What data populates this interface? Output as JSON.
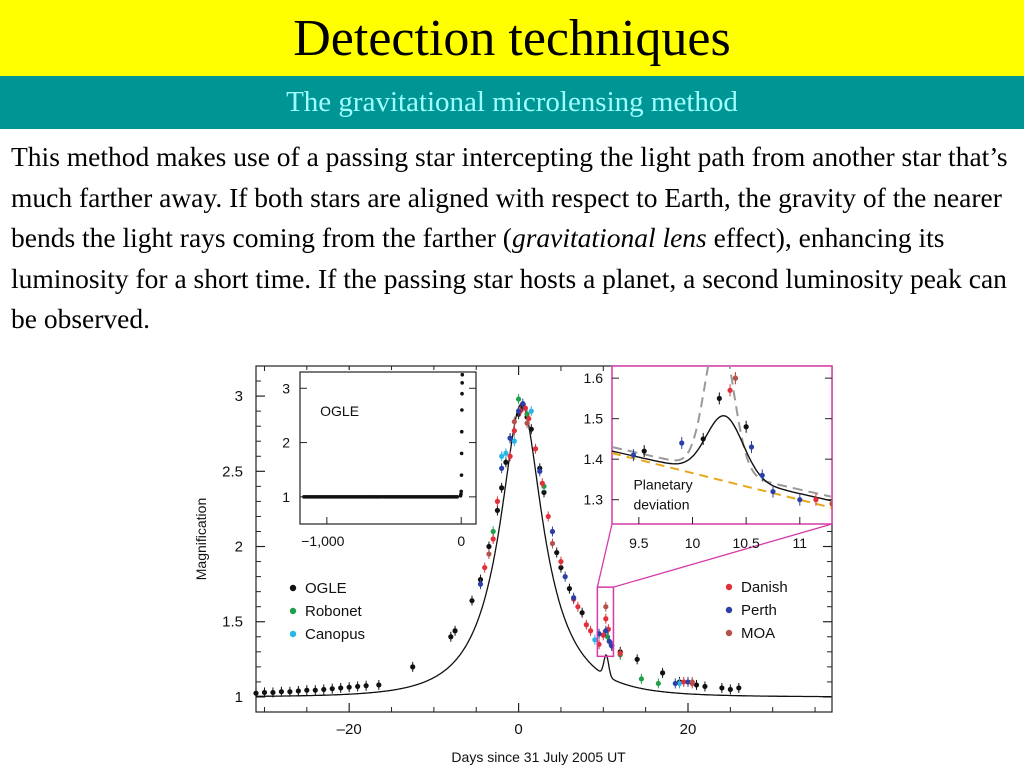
{
  "slide": {
    "title": "Detection techniques",
    "subtitle": "The gravitational microlensing method",
    "body_before_em": "This method makes use of a passing star intercepting the light path from another star that’s much farther away. If both stars are aligned with respect to Earth, the gravity of the nearer bends the light rays coming from the farther (",
    "body_em": "gravitational lens",
    "body_after_em": " effect), enhancing its luminosity for a short time. If the passing star hosts a planet, a second luminosity peak can be observed."
  },
  "colors": {
    "title_bg": "#ffff00",
    "subtitle_bg": "#009595",
    "subtitle_text": "#9fffff",
    "inset_border": "#d63ba8",
    "OGLE": "#111111",
    "Robonet": "#1fa04c",
    "Canopus": "#29b6e6",
    "Danish": "#e0303a",
    "Perth": "#2b3fa6",
    "MOA": "#b2524a"
  },
  "chart_data": [
    {
      "id": "main",
      "type": "scatter",
      "xlabel": "Days since 31 July 2005 UT",
      "ylabel": "Magnification",
      "xlim": [
        -31,
        37
      ],
      "ylim": [
        0.9,
        3.2
      ],
      "x_ticks": [
        -20,
        0,
        20
      ],
      "x_tick_labels": [
        "–20",
        "0",
        "20"
      ],
      "y_ticks": [
        1,
        1.5,
        2,
        2.5,
        3
      ],
      "y_tick_labels": [
        "1",
        "1.5",
        "2",
        "2.5",
        "3"
      ],
      "legend_left": [
        "OGLE",
        "Robonet",
        "Canopus"
      ],
      "legend_right": [
        "Danish",
        "Perth",
        "MOA"
      ],
      "model_curve": {
        "t0": 0.35,
        "tE": 7.0,
        "u0": 0.355
      },
      "planet_bump": {
        "t": 10.35,
        "amp": 0.14,
        "width": 0.28
      },
      "series": [
        {
          "name": "OGLE",
          "points": [
            [
              -31,
              1.025
            ],
            [
              -30,
              1.03
            ],
            [
              -29,
              1.03
            ],
            [
              -28,
              1.035
            ],
            [
              -27,
              1.035
            ],
            [
              -26,
              1.04
            ],
            [
              -25,
              1.045
            ],
            [
              -24,
              1.045
            ],
            [
              -23,
              1.05
            ],
            [
              -22,
              1.055
            ],
            [
              -21,
              1.06
            ],
            [
              -20,
              1.065
            ],
            [
              -19,
              1.07
            ],
            [
              -18,
              1.075
            ],
            [
              -16.5,
              1.08
            ],
            [
              -12.5,
              1.2
            ],
            [
              -8,
              1.4
            ],
            [
              -7.5,
              1.44
            ],
            [
              -5.5,
              1.64
            ],
            [
              -4.5,
              1.78
            ],
            [
              -3.5,
              2.0
            ],
            [
              -2.5,
              2.24
            ],
            [
              -2,
              2.39
            ],
            [
              -1.5,
              2.56
            ],
            [
              -1,
              2.72
            ],
            [
              0,
              2.88
            ],
            [
              0.5,
              2.93
            ],
            [
              1,
              2.86
            ],
            [
              1.5,
              2.78
            ],
            [
              2.5,
              2.52
            ],
            [
              3,
              2.36
            ],
            [
              4.5,
              1.96
            ],
            [
              5,
              1.86
            ],
            [
              6,
              1.72
            ],
            [
              7.5,
              1.56
            ],
            [
              11,
              1.34
            ],
            [
              12,
              1.3
            ],
            [
              14,
              1.25
            ],
            [
              17,
              1.16
            ],
            [
              19,
              1.1
            ],
            [
              21,
              1.08
            ],
            [
              22,
              1.07
            ],
            [
              24,
              1.06
            ],
            [
              25,
              1.05
            ],
            [
              26,
              1.06
            ]
          ]
        },
        {
          "name": "Robonet",
          "points": [
            [
              -3,
              2.1
            ],
            [
              0,
              2.98
            ],
            [
              1,
              2.88
            ],
            [
              3,
              2.4
            ],
            [
              10.5,
              1.4
            ],
            [
              12,
              1.28
            ],
            [
              14.5,
              1.12
            ],
            [
              16.5,
              1.09
            ]
          ]
        },
        {
          "name": "Canopus",
          "points": [
            [
              -2,
              2.6
            ],
            [
              -1.5,
              2.62
            ],
            [
              -0.5,
              2.7
            ],
            [
              1.5,
              2.9
            ],
            [
              9,
              1.38
            ],
            [
              19,
              1.09
            ]
          ]
        },
        {
          "name": "Danish",
          "points": [
            [
              -4,
              1.86
            ],
            [
              -3,
              2.05
            ],
            [
              -2.5,
              2.3
            ],
            [
              -1,
              2.6
            ],
            [
              -0.5,
              2.77
            ],
            [
              0.2,
              2.9
            ],
            [
              0.8,
              2.92
            ],
            [
              1.2,
              2.85
            ],
            [
              2,
              2.65
            ],
            [
              2.8,
              2.42
            ],
            [
              3.5,
              2.2
            ],
            [
              5,
              1.9
            ],
            [
              6.5,
              1.65
            ],
            [
              7,
              1.6
            ],
            [
              8,
              1.48
            ],
            [
              8.5,
              1.44
            ],
            [
              9.5,
              1.35
            ],
            [
              10,
              1.41
            ],
            [
              10.3,
              1.52
            ],
            [
              10.6,
              1.45
            ],
            [
              11,
              1.34
            ],
            [
              12,
              1.29
            ],
            [
              19.5,
              1.1
            ],
            [
              20.5,
              1.09
            ]
          ]
        },
        {
          "name": "Perth",
          "points": [
            [
              -4.5,
              1.75
            ],
            [
              -2,
              2.52
            ],
            [
              -1,
              2.72
            ],
            [
              0,
              2.9
            ],
            [
              0.5,
              2.95
            ],
            [
              2.5,
              2.5
            ],
            [
              4,
              2.1
            ],
            [
              5.5,
              1.8
            ],
            [
              6.5,
              1.66
            ],
            [
              9.5,
              1.42
            ],
            [
              10.3,
              1.44
            ],
            [
              10.7,
              1.37
            ],
            [
              11,
              1.34
            ],
            [
              18.5,
              1.09
            ],
            [
              20,
              1.1
            ]
          ]
        },
        {
          "name": "MOA",
          "points": [
            [
              -3.5,
              1.95
            ],
            [
              -0.5,
              2.83
            ],
            [
              1,
              2.82
            ],
            [
              4,
              2.02
            ],
            [
              10.3,
              1.6
            ],
            [
              20.5,
              1.1
            ]
          ]
        }
      ]
    },
    {
      "id": "inset-ogle",
      "type": "scatter",
      "label": "OGLE",
      "xlim": [
        -1200,
        110
      ],
      "ylim": [
        0.5,
        3.3
      ],
      "x_ticks": [
        -1000,
        0
      ],
      "x_tick_labels": [
        "−1,000",
        "0"
      ],
      "y_ticks": [
        1,
        2,
        3
      ],
      "y_tick_labels": [
        "1",
        "2",
        "3"
      ],
      "baseline": 1.0
    },
    {
      "id": "inset-planet",
      "type": "scatter",
      "annotation": "Planetary deviation",
      "xlim": [
        9.25,
        11.3
      ],
      "ylim": [
        1.24,
        1.63
      ],
      "x_ticks": [
        9.5,
        10,
        10.5,
        11
      ],
      "x_tick_labels": [
        "9.5",
        "10",
        "10.5",
        "11"
      ],
      "y_ticks": [
        1.3,
        1.4,
        1.5,
        1.6
      ],
      "y_tick_labels": [
        "1.3",
        "1.4",
        "1.5",
        "1.6"
      ],
      "series": [
        {
          "name": "OGLE",
          "points": [
            [
              9.55,
              1.42
            ],
            [
              10.1,
              1.45
            ],
            [
              10.25,
              1.55
            ],
            [
              10.5,
              1.48
            ]
          ]
        },
        {
          "name": "Danish",
          "points": [
            [
              10.35,
              1.57
            ],
            [
              10.4,
              1.6
            ],
            [
              11.15,
              1.3
            ]
          ]
        },
        {
          "name": "Perth",
          "points": [
            [
              9.45,
              1.41
            ],
            [
              9.9,
              1.44
            ],
            [
              10.55,
              1.43
            ],
            [
              10.65,
              1.36
            ],
            [
              10.75,
              1.32
            ],
            [
              11.0,
              1.3
            ]
          ]
        },
        {
          "name": "MOA",
          "points": [
            [
              10.4,
              1.6
            ],
            [
              11.3,
              1.29
            ]
          ]
        }
      ]
    }
  ]
}
